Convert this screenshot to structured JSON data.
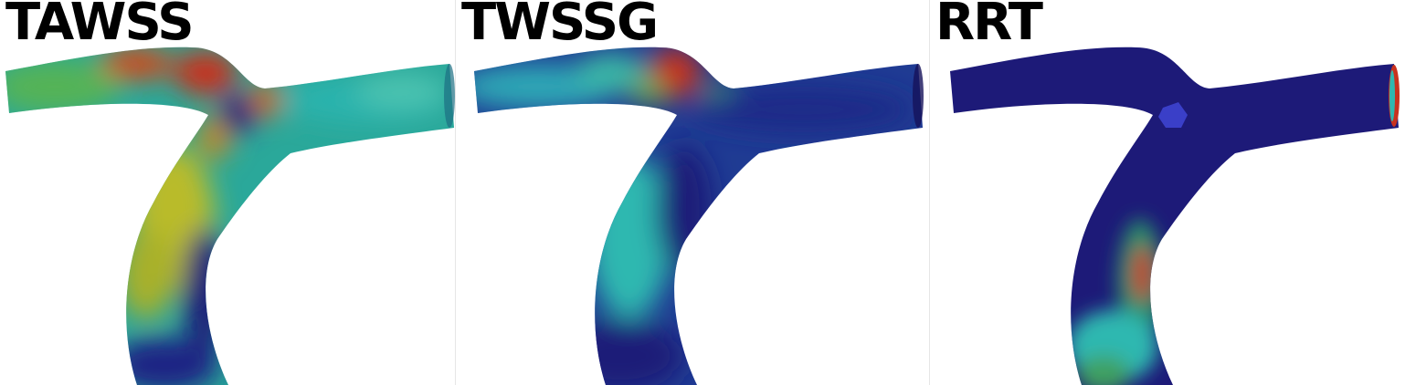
{
  "panels": [
    {
      "title": "TAWSS"
    },
    {
      "title": "TWSSG"
    },
    {
      "title": "RRT"
    }
  ],
  "colors": {
    "dark_blue": "#1d1a78",
    "teal": "#2fb8b0",
    "cyan": "#3fd2c6",
    "green": "#3f9f4a",
    "yellow": "#c9c21a",
    "red": "#c8321e"
  }
}
